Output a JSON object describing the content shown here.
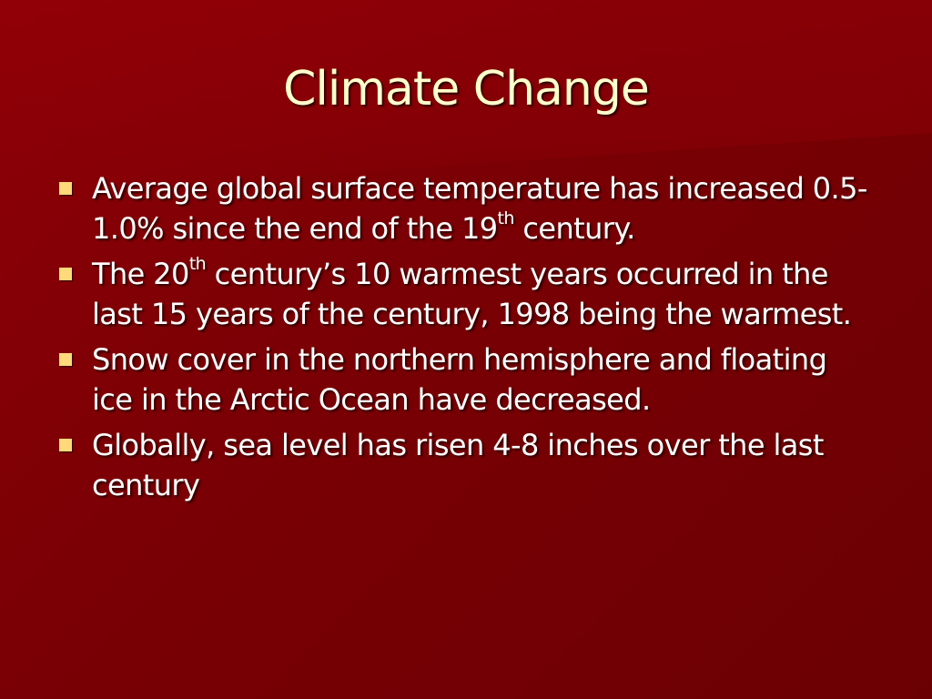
{
  "slide": {
    "title": "Climate Change",
    "colors": {
      "background": "#7a0005",
      "title_text": "#ffffcc",
      "body_text": "#ffffff",
      "bullet_marker": "#ffd97a"
    },
    "bullets": [
      {
        "marker_icon": "square-bullet-icon",
        "text_a": "Average global surface temperature has increased 0.5-1.0% since the end of the 19",
        "sup": "th",
        "text_b": " century."
      },
      {
        "marker_icon": "square-bullet-icon",
        "text_a": "The 20",
        "sup": "th",
        "text_b": " century’s 10 warmest years occurred in the last 15 years of the century, 1998 being the warmest."
      },
      {
        "marker_icon": "square-bullet-icon",
        "text_a": "Snow cover in the northern hemisphere and floating ice in the Arctic Ocean have decreased.",
        "sup": "",
        "text_b": ""
      },
      {
        "marker_icon": "square-bullet-icon",
        "text_a": "Globally, sea level has risen 4-8 inches over the last century",
        "sup": "",
        "text_b": ""
      }
    ]
  }
}
